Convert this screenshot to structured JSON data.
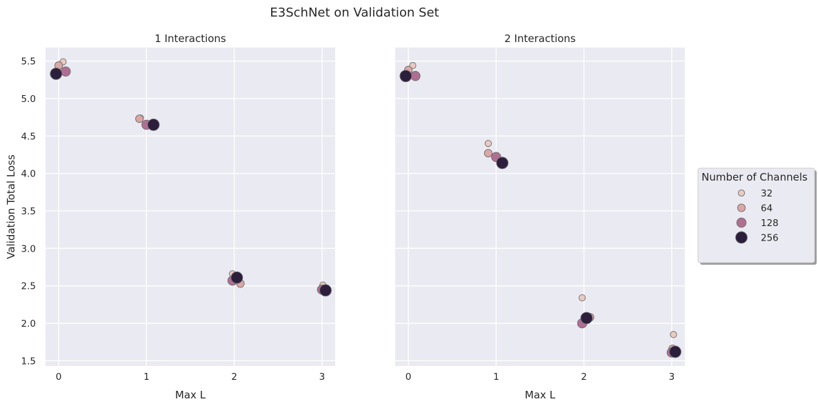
{
  "figure": {
    "title": "E3SchNet on Validation Set"
  },
  "legend": {
    "title": "Number of Channels",
    "placement": "right",
    "entries": [
      {
        "label": "32",
        "channels": 32,
        "color": "#ebcac1"
      },
      {
        "label": "64",
        "channels": 64,
        "color": "#dba6a5"
      },
      {
        "label": "128",
        "channels": 128,
        "color": "#b06f92"
      },
      {
        "label": "256",
        "channels": 256,
        "color": "#2c1e3d"
      }
    ]
  },
  "chart_data": [
    {
      "type": "scatter",
      "title": "1 Interactions",
      "xlabel": "Max L",
      "ylabel": "Validation Total Loss",
      "xlim": [
        -0.15,
        3.15
      ],
      "ylim": [
        1.43,
        5.68
      ],
      "xticks": [
        "0",
        "1",
        "2",
        "3"
      ],
      "yticks": [
        "1.5",
        "2.0",
        "2.5",
        "3.0",
        "3.5",
        "4.0",
        "4.5",
        "5.0",
        "5.5"
      ],
      "grid": true,
      "points": [
        {
          "x": 0.05,
          "y": 5.49,
          "channels": 32
        },
        {
          "x": 0.0,
          "y": 5.44,
          "channels": 64
        },
        {
          "x": 0.08,
          "y": 5.36,
          "channels": 128
        },
        {
          "x": -0.03,
          "y": 5.33,
          "channels": 256
        },
        {
          "x": 0.93,
          "y": 4.74,
          "channels": 32
        },
        {
          "x": 0.92,
          "y": 4.73,
          "channels": 64
        },
        {
          "x": 1.0,
          "y": 4.65,
          "channels": 128
        },
        {
          "x": 1.08,
          "y": 4.65,
          "channels": 256
        },
        {
          "x": 1.98,
          "y": 2.66,
          "channels": 32
        },
        {
          "x": 2.07,
          "y": 2.53,
          "channels": 64
        },
        {
          "x": 1.98,
          "y": 2.57,
          "channels": 128
        },
        {
          "x": 2.03,
          "y": 2.61,
          "channels": 256
        },
        {
          "x": 3.01,
          "y": 2.51,
          "channels": 32
        },
        {
          "x": 3.0,
          "y": 2.44,
          "channels": 64
        },
        {
          "x": 3.0,
          "y": 2.45,
          "channels": 128
        },
        {
          "x": 3.04,
          "y": 2.44,
          "channels": 256
        }
      ]
    },
    {
      "type": "scatter",
      "title": "2 Interactions",
      "xlabel": "Max L",
      "ylabel": "",
      "xlim": [
        -0.15,
        3.15
      ],
      "ylim": [
        1.43,
        5.68
      ],
      "xticks": [
        "0",
        "1",
        "2",
        "3"
      ],
      "yticks": [],
      "grid": true,
      "points": [
        {
          "x": 0.05,
          "y": 5.44,
          "channels": 32
        },
        {
          "x": 0.0,
          "y": 5.38,
          "channels": 64
        },
        {
          "x": 0.08,
          "y": 5.3,
          "channels": 128
        },
        {
          "x": -0.03,
          "y": 5.3,
          "channels": 256
        },
        {
          "x": 0.91,
          "y": 4.4,
          "channels": 32
        },
        {
          "x": 0.91,
          "y": 4.27,
          "channels": 64
        },
        {
          "x": 1.0,
          "y": 4.22,
          "channels": 128
        },
        {
          "x": 1.07,
          "y": 4.14,
          "channels": 256
        },
        {
          "x": 1.98,
          "y": 2.34,
          "channels": 32
        },
        {
          "x": 2.07,
          "y": 2.08,
          "channels": 64
        },
        {
          "x": 1.98,
          "y": 2.0,
          "channels": 128
        },
        {
          "x": 2.03,
          "y": 2.07,
          "channels": 256
        },
        {
          "x": 3.02,
          "y": 1.85,
          "channels": 32
        },
        {
          "x": 3.01,
          "y": 1.66,
          "channels": 64
        },
        {
          "x": 3.0,
          "y": 1.61,
          "channels": 128
        },
        {
          "x": 3.04,
          "y": 1.62,
          "channels": 256
        }
      ]
    }
  ]
}
